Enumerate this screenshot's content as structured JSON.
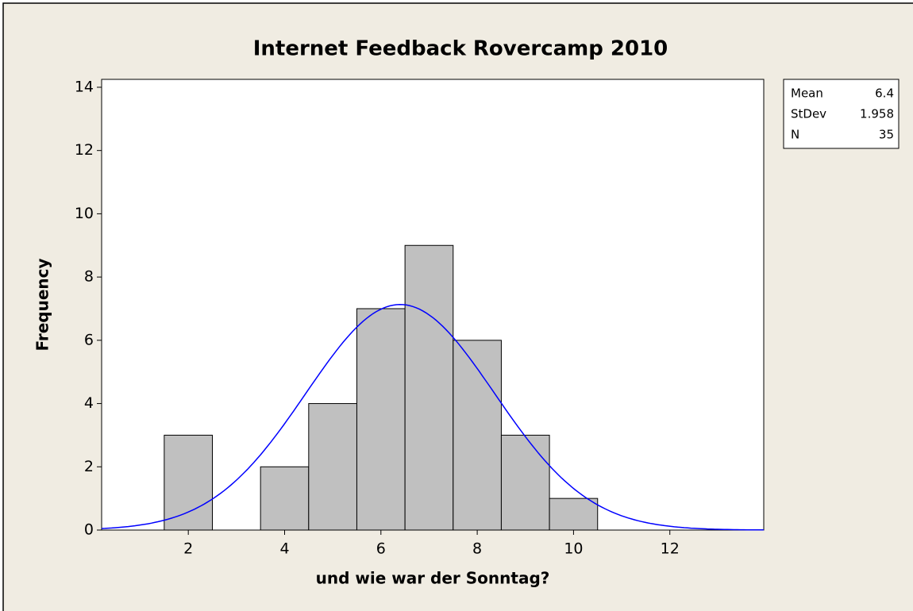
{
  "chart_data": {
    "type": "histogram",
    "title": "Internet Feedback Rovercamp 2010",
    "x_label": "und wie war der Sonntag?",
    "y_label": "Frequency",
    "bins": [
      1.5,
      2.5,
      3.5,
      4.5,
      5.5,
      6.5,
      7.5,
      8.5,
      9.5,
      10.5
    ],
    "values": [
      3,
      0,
      2,
      4,
      7,
      9,
      6,
      3,
      1
    ],
    "color": "#c0c0c0",
    "curve_color": "#0000ff",
    "xlim": [
      0.2,
      13.95
    ],
    "xticks": [
      2,
      4,
      6,
      8,
      10,
      12
    ],
    "ylim": [
      0,
      14.25
    ],
    "yticks": [
      0,
      2,
      4,
      6,
      8,
      10,
      12,
      14
    ],
    "stats": [
      {
        "label": "Mean",
        "value": 6.4
      },
      {
        "label": "StDev",
        "value": 1.958
      },
      {
        "label": "N",
        "value": 35
      }
    ]
  }
}
